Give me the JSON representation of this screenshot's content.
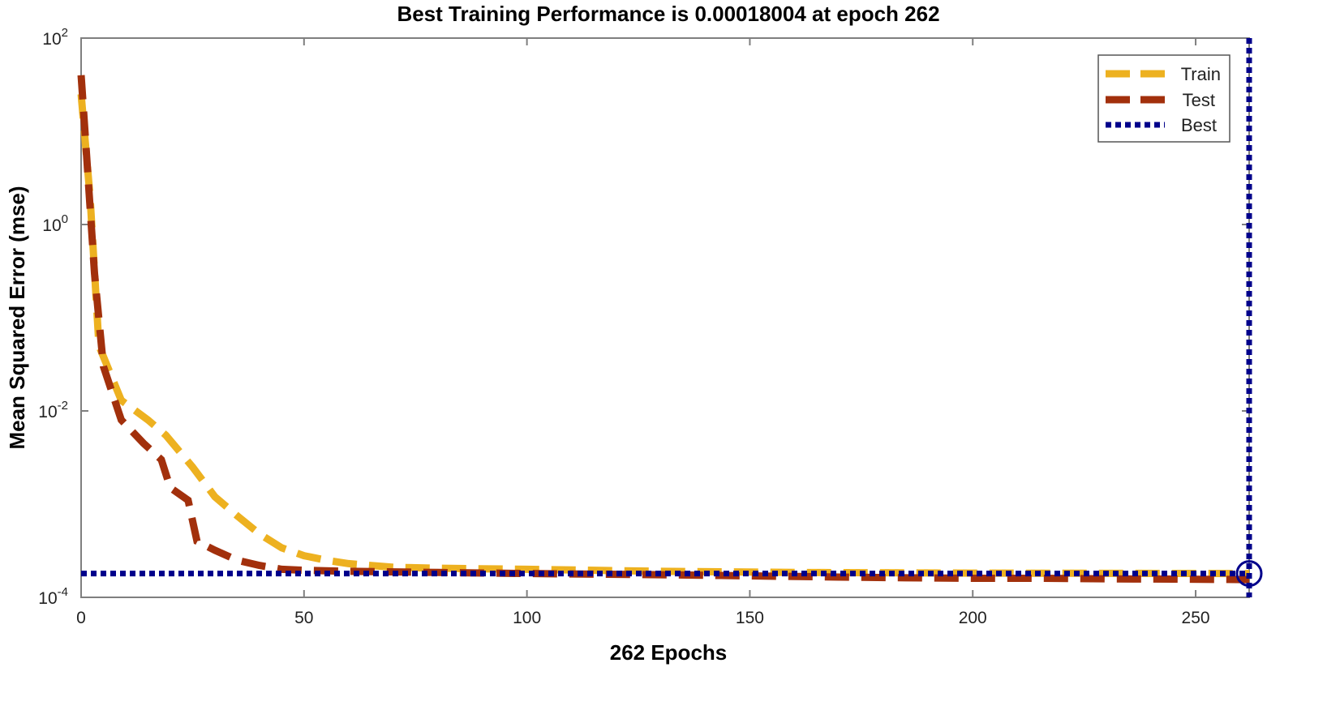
{
  "chart_data": {
    "type": "line",
    "title": "Best Training Performance is 0.00018004 at epoch 262",
    "xlabel": "262 Epochs",
    "ylabel": "Mean Squared Error  (mse)",
    "xlim": [
      0,
      262
    ],
    "ylim": [
      0.0001,
      100
    ],
    "yscale": "log",
    "x_ticks": [
      "0",
      "50",
      "100",
      "150",
      "200",
      "250"
    ],
    "y_ticks": [
      {
        "base": "10",
        "exp": "2",
        "value": 100
      },
      {
        "base": "10",
        "exp": "0",
        "value": 1
      },
      {
        "base": "10",
        "exp": "-2",
        "value": 0.01
      },
      {
        "base": "10",
        "exp": "-4",
        "value": 0.0001
      }
    ],
    "legend_position": "top-right",
    "colors": {
      "train": "#EDB120",
      "test": "#A2300C",
      "best": "#00008B"
    },
    "series": [
      {
        "name": "Train",
        "style": "dashed",
        "x": [
          0,
          2,
          4,
          9,
          15,
          19,
          25,
          30,
          35,
          40,
          45,
          50,
          55,
          60,
          70,
          80,
          100,
          130,
          160,
          200,
          262
        ],
        "y": [
          25,
          2,
          0.05,
          0.013,
          0.008,
          0.0055,
          0.0025,
          0.0012,
          0.00075,
          0.00048,
          0.00034,
          0.00028,
          0.00025,
          0.00023,
          0.00021,
          0.000205,
          0.0002,
          0.00019,
          0.000185,
          0.000182,
          0.00018
        ]
      },
      {
        "name": "Test",
        "style": "dashed",
        "x": [
          0,
          1,
          3,
          5,
          9,
          14,
          18,
          20,
          24,
          26,
          30,
          35,
          40,
          45,
          50,
          60,
          80,
          100,
          130,
          150,
          170,
          185,
          200,
          215,
          230,
          245,
          262
        ],
        "y": [
          40,
          8,
          0.3,
          0.03,
          0.008,
          0.0045,
          0.003,
          0.0015,
          0.0011,
          0.0004,
          0.00032,
          0.00025,
          0.00022,
          0.0002,
          0.000195,
          0.00019,
          0.000185,
          0.00018,
          0.000175,
          0.00017,
          0.000165,
          0.000162,
          0.00016,
          0.00016,
          0.000158,
          0.000157,
          0.000155
        ]
      },
      {
        "name": "Best",
        "style": "dotted",
        "hline": 0.00018004,
        "vline": 262,
        "marker": {
          "x": 262,
          "y": 0.00018004
        }
      }
    ]
  }
}
